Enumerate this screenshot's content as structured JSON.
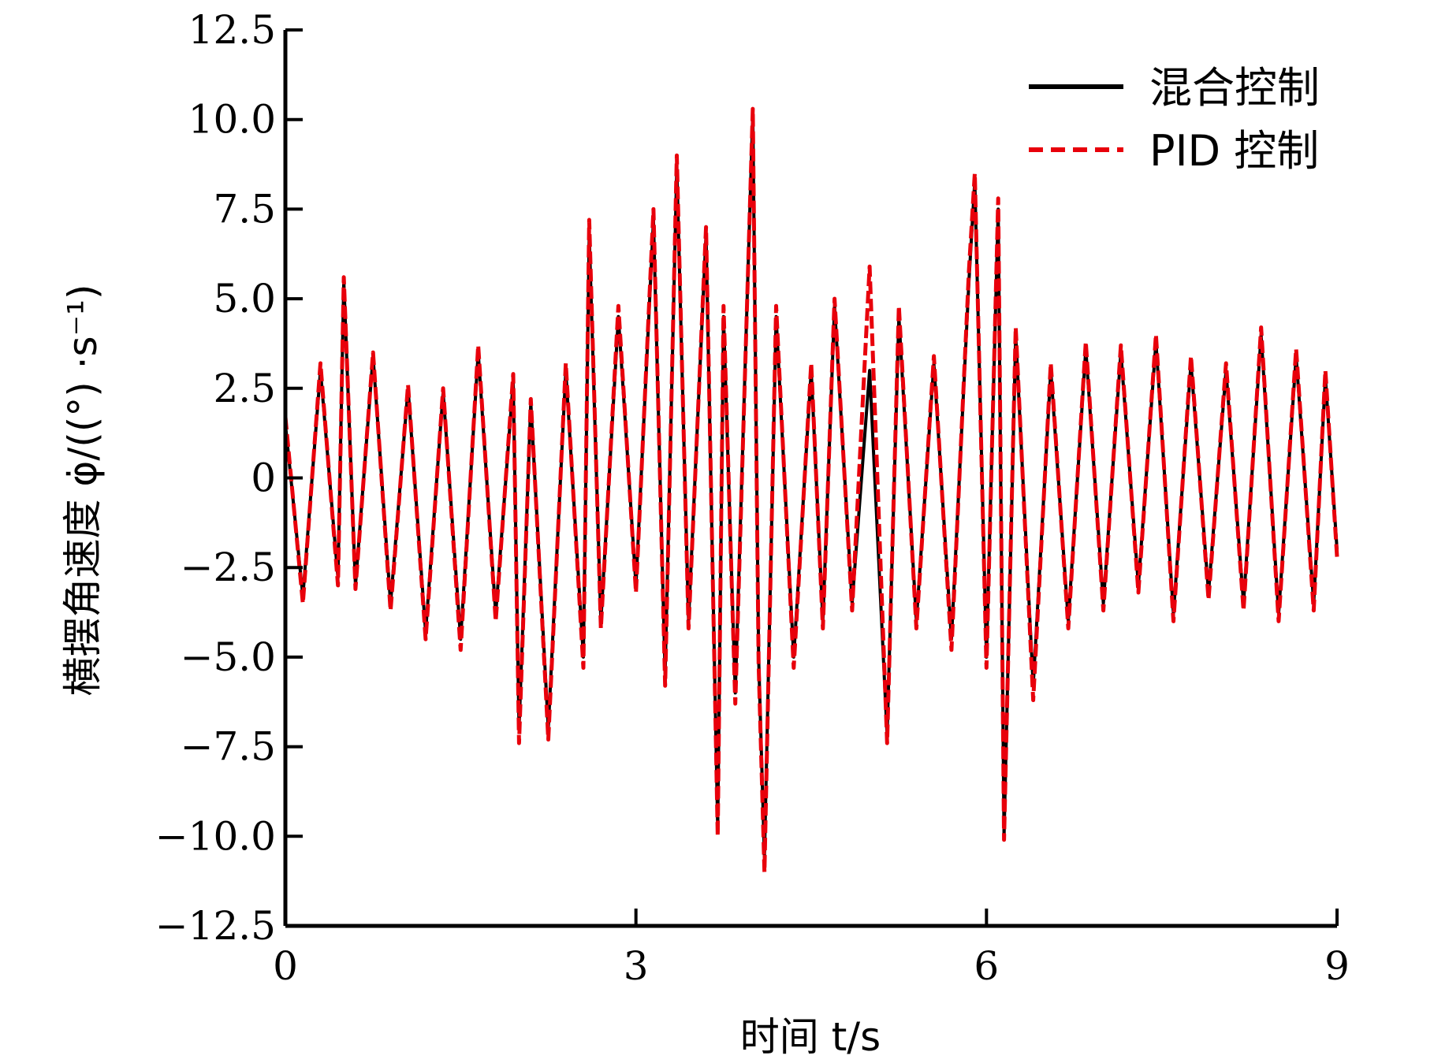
{
  "chart_data": {
    "type": "line",
    "xlabel": "时间 t/s",
    "ylabel": "横摆角速度 φ̇/((°) ·s⁻¹)",
    "xlim": [
      0,
      9
    ],
    "ylim": [
      -12.5,
      12.5
    ],
    "x_ticks": [
      0,
      3,
      6,
      9
    ],
    "x_tick_labels": [
      "0",
      "3",
      "6",
      "9"
    ],
    "y_ticks": [
      12.5,
      10.0,
      7.5,
      5.0,
      2.5,
      0,
      -2.5,
      -5.0,
      -7.5,
      -10.0,
      -12.5
    ],
    "y_tick_labels": [
      "12.5",
      "10.0",
      "7.5",
      "5.0",
      "2.5",
      "0",
      "−2.5",
      "−5.0",
      "−7.5",
      "−10.0",
      "−12.5"
    ],
    "grid": false,
    "legend_position": "top-right",
    "x": [
      0.0,
      0.15,
      0.3,
      0.45,
      0.5,
      0.6,
      0.75,
      0.9,
      1.05,
      1.2,
      1.35,
      1.5,
      1.65,
      1.8,
      1.95,
      2.0,
      2.1,
      2.25,
      2.4,
      2.55,
      2.6,
      2.7,
      2.85,
      3.0,
      3.15,
      3.25,
      3.35,
      3.45,
      3.6,
      3.7,
      3.75,
      3.85,
      4.0,
      4.05,
      4.1,
      4.2,
      4.35,
      4.5,
      4.6,
      4.7,
      4.85,
      5.0,
      5.15,
      5.25,
      5.4,
      5.55,
      5.7,
      5.85,
      5.9,
      6.0,
      6.1,
      6.15,
      6.25,
      6.4,
      6.55,
      6.7,
      6.85,
      7.0,
      7.15,
      7.3,
      7.45,
      7.6,
      7.75,
      7.9,
      8.05,
      8.2,
      8.35,
      8.5,
      8.65,
      8.8,
      8.9,
      9.0
    ],
    "series": [
      {
        "name": "混合控制",
        "color": "#000000",
        "dash": "solid",
        "values": [
          1.5,
          -3.3,
          3.0,
          -2.8,
          5.5,
          -3.0,
          3.4,
          -3.5,
          2.5,
          -4.3,
          2.4,
          -4.5,
          3.5,
          -3.8,
          2.7,
          -7.0,
          2.1,
          -7.0,
          3.0,
          -5.0,
          6.8,
          -4.0,
          4.5,
          -3.0,
          7.2,
          -5.5,
          8.7,
          -4.0,
          6.8,
          -9.8,
          4.5,
          -6.0,
          10.2,
          -5.0,
          -10.6,
          4.5,
          -5.0,
          3.0,
          -4.0,
          4.8,
          -3.5,
          3.0,
          -7.2,
          4.5,
          -4.0,
          3.2,
          -4.5,
          5.5,
          8.3,
          -5.0,
          7.5,
          -10.0,
          4.0,
          -5.8,
          3.0,
          -4.0,
          3.6,
          -3.5,
          3.5,
          -3.0,
          3.8,
          -3.8,
          3.2,
          -3.2,
          3.0,
          -3.5,
          4.0,
          -3.8,
          3.4,
          -3.5,
          2.8,
          -2.0
        ]
      },
      {
        "name": "PID 控制",
        "color": "#e8000b",
        "dash": "dashed",
        "values": [
          1.7,
          -3.5,
          3.2,
          -3.0,
          5.6,
          -3.1,
          3.5,
          -3.7,
          2.6,
          -4.5,
          2.5,
          -4.8,
          3.7,
          -4.0,
          2.9,
          -7.4,
          2.2,
          -7.3,
          3.2,
          -5.3,
          7.2,
          -4.2,
          4.8,
          -3.2,
          7.5,
          -5.8,
          9.0,
          -4.2,
          7.0,
          -10.0,
          4.8,
          -6.3,
          10.3,
          -5.2,
          -11.0,
          4.8,
          -5.3,
          3.2,
          -4.2,
          5.0,
          -3.7,
          5.9,
          -7.4,
          4.8,
          -4.2,
          3.4,
          -4.8,
          5.8,
          8.5,
          -5.3,
          7.8,
          -10.1,
          4.2,
          -6.2,
          3.2,
          -4.2,
          3.8,
          -3.7,
          3.7,
          -3.2,
          4.0,
          -4.0,
          3.4,
          -3.4,
          3.2,
          -3.7,
          4.2,
          -4.0,
          3.6,
          -3.7,
          3.0,
          -2.2
        ]
      }
    ]
  }
}
